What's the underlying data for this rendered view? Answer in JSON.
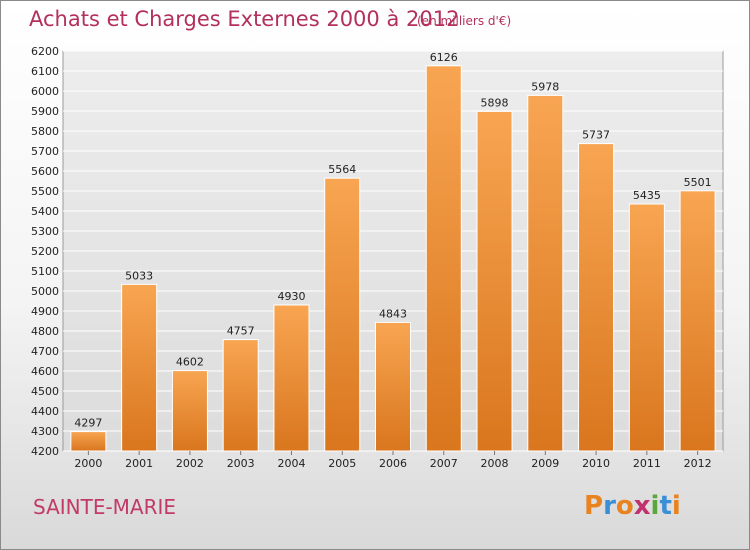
{
  "header": {
    "title": "Achats et Charges Externes 2000 à 2012",
    "subtitle": "(en milliers d'€)"
  },
  "footer": {
    "commune": "SAINTE-MARIE",
    "logo_text": "Proxiti"
  },
  "colors": {
    "bar_light": "#f8a552",
    "bar_dark": "#d9761e",
    "title": "#b3305d",
    "logo": [
      "#e8831f",
      "#3b8fd6",
      "#e8831f",
      "#c2306e",
      "#5aa83c",
      "#3b8fd6",
      "#e8831f"
    ]
  },
  "chart_data": {
    "type": "bar",
    "title": "Achats et Charges Externes 2000 à 2012",
    "xlabel": "",
    "ylabel": "",
    "ylim": [
      4200,
      6200
    ],
    "ytick_step": 100,
    "grid": true,
    "categories": [
      "2000",
      "2001",
      "2002",
      "2003",
      "2004",
      "2005",
      "2006",
      "2007",
      "2008",
      "2009",
      "2010",
      "2011",
      "2012"
    ],
    "values": [
      4297,
      5033,
      4602,
      4757,
      4930,
      5564,
      4843,
      6126,
      5898,
      5978,
      5737,
      5435,
      5501
    ]
  }
}
